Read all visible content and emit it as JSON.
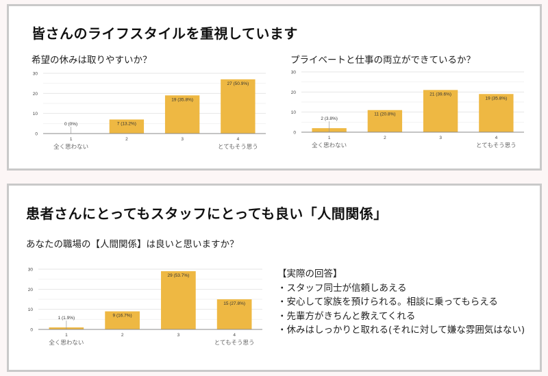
{
  "page": {
    "background": "#fcf6f6",
    "bar_color": "#eeb843"
  },
  "section1": {
    "title": "皆さんのライフスタイルを重視しています",
    "charts": [
      {
        "question": "希望の休みは取りやすいか？"
      },
      {
        "question": "プライベートと仕事の両立ができているか？"
      }
    ]
  },
  "section2": {
    "title": "患者さんにとってもスタッフにとっても良い「人間関係」",
    "question": "あなたの職場の【人間関係】は良いと思いますか？",
    "answers_heading": "【実際の回答】",
    "answers": [
      "・スタッフ同士が信頼しあえる",
      "・安心して家族を預けられる。相談に乗ってもらえる",
      "・先輩方がきちんと教えてくれる",
      "・休みはしっかりと取れる(それに対して嫌な雰囲気はない)"
    ]
  },
  "chart_data": [
    {
      "type": "bar",
      "title": "希望の休みは取りやすいか？",
      "categories": [
        "1",
        "2",
        "3",
        "4"
      ],
      "category_sublabels": {
        "1": "全く思わない",
        "4": "とてもそう思う"
      },
      "values": [
        0,
        7,
        19,
        27
      ],
      "data_labels": [
        "0 (0%)",
        "7 (13.2%)",
        "19 (35.8%)",
        "27 (50.9%)"
      ],
      "yticks": [
        0,
        10,
        20,
        30
      ],
      "ylim": [
        0,
        30
      ],
      "xlabel": "",
      "ylabel": "",
      "grid": true,
      "legend": "none",
      "color": "#eeb843"
    },
    {
      "type": "bar",
      "title": "プライベートと仕事の両立ができているか？",
      "categories": [
        "1",
        "2",
        "3",
        "4"
      ],
      "category_sublabels": {
        "1": "全く思わない",
        "4": "とてもそう思う"
      },
      "values": [
        2,
        11,
        21,
        19
      ],
      "data_labels": [
        "2 (3.8%)",
        "11 (20.8%)",
        "21 (39.6%)",
        "19 (35.8%)"
      ],
      "yticks": [
        0,
        10,
        20,
        30
      ],
      "ylim": [
        0,
        30
      ],
      "xlabel": "",
      "ylabel": "",
      "grid": true,
      "legend": "none",
      "color": "#eeb843"
    },
    {
      "type": "bar",
      "title": "あなたの職場の【人間関係】は良いと思いますか？",
      "categories": [
        "1",
        "2",
        "3",
        "4"
      ],
      "category_sublabels": {
        "1": "全く思わない",
        "4": "とてもそう思う"
      },
      "values": [
        1,
        9,
        29,
        15
      ],
      "data_labels": [
        "1 (1.9%)",
        "9 (16.7%)",
        "29 (53.7%)",
        "15 (27.8%)"
      ],
      "yticks": [
        0,
        10,
        20,
        30
      ],
      "ylim": [
        0,
        30
      ],
      "xlabel": "",
      "ylabel": "",
      "grid": true,
      "legend": "none",
      "color": "#eeb843"
    }
  ]
}
